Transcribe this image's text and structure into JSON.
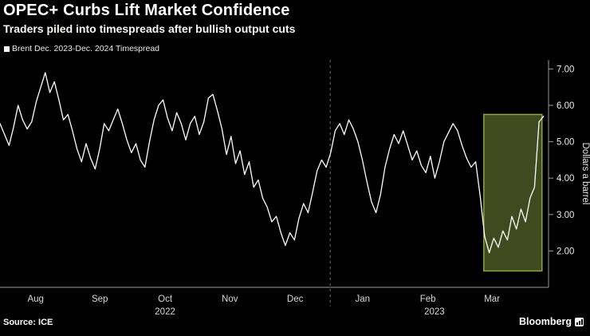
{
  "header": {
    "title": "OPEC+ Curbs Lift Market Confidence",
    "subtitle": "Traders piled into timespreads after bullish output cuts",
    "legend": "Brent Dec. 2023-Dec. 2024 Timespread"
  },
  "footer": {
    "source": "Source: ICE",
    "brand": "Bloomberg"
  },
  "chart_data": {
    "type": "line",
    "title": "OPEC+ Curbs Lift Market Confidence",
    "subtitle": "Traders piled into timespreads after bullish output cuts",
    "ylabel": "Dollars a barrel",
    "ylim": [
      1.0,
      7.25
    ],
    "grid": "off",
    "legend_position": "top-left",
    "yticks": [
      {
        "value": 2,
        "label": "2.00"
      },
      {
        "value": 3,
        "label": "3.00"
      },
      {
        "value": 4,
        "label": "4.00"
      },
      {
        "value": 5,
        "label": "5.00"
      },
      {
        "value": 6,
        "label": "6.00"
      },
      {
        "value": 7,
        "label": "7.00"
      }
    ],
    "x_labels": [
      {
        "label": "Aug",
        "pos": 0.065
      },
      {
        "label": "Sep",
        "pos": 0.182
      },
      {
        "label": "Oct",
        "pos": 0.301
      },
      {
        "label": "Nov",
        "pos": 0.419
      },
      {
        "label": "Dec",
        "pos": 0.538
      },
      {
        "label": "Jan",
        "pos": 0.661
      },
      {
        "label": "Feb",
        "pos": 0.78
      },
      {
        "label": "Mar",
        "pos": 0.897
      }
    ],
    "year_labels": [
      {
        "label": "2022",
        "pos": 0.301
      },
      {
        "label": "2023",
        "pos": 0.792
      }
    ],
    "year_divider_pos": 0.602,
    "x_span": 0.991,
    "highlight": {
      "x0": 0.882,
      "x1": 0.988,
      "y0": 1.45,
      "y1": 5.75
    },
    "colors": {
      "line": "#ffffff",
      "axis": "#9a9a9a",
      "tick_text": "#e8e8e8",
      "divider": "#707070",
      "highlight_fill": "#3f4a1e",
      "highlight_border": "#8aa743",
      "background": "#000000"
    },
    "series": [
      {
        "name": "Brent Dec. 2023-Dec. 2024 Timespread",
        "values": [
          5.5,
          5.2,
          4.9,
          5.4,
          6.0,
          5.6,
          5.35,
          5.55,
          6.1,
          6.5,
          6.9,
          6.35,
          6.65,
          6.15,
          5.6,
          5.75,
          5.3,
          4.8,
          4.45,
          4.95,
          4.55,
          4.25,
          4.8,
          5.5,
          5.3,
          5.6,
          5.9,
          5.5,
          5.05,
          4.7,
          4.95,
          4.5,
          4.3,
          5.0,
          5.6,
          6.0,
          6.15,
          5.65,
          5.3,
          5.8,
          5.5,
          5.05,
          5.5,
          5.7,
          5.2,
          5.55,
          6.2,
          6.3,
          5.85,
          5.35,
          4.65,
          5.15,
          4.4,
          4.75,
          4.1,
          4.45,
          3.75,
          3.95,
          3.45,
          3.2,
          2.8,
          2.95,
          2.5,
          2.15,
          2.5,
          2.3,
          2.9,
          3.3,
          3.05,
          3.6,
          4.2,
          4.5,
          4.3,
          4.7,
          5.3,
          5.5,
          5.2,
          5.6,
          5.35,
          5.0,
          4.5,
          3.9,
          3.35,
          3.05,
          3.55,
          4.3,
          4.8,
          5.2,
          4.95,
          5.3,
          4.9,
          4.5,
          4.75,
          4.35,
          4.15,
          4.6,
          4.0,
          4.45,
          5.0,
          5.25,
          5.5,
          5.3,
          4.9,
          4.55,
          4.3,
          4.45,
          3.5,
          2.4,
          1.95,
          2.35,
          2.1,
          2.55,
          2.3,
          2.95,
          2.6,
          3.15,
          2.8,
          3.45,
          3.75,
          5.55,
          5.7
        ]
      }
    ]
  }
}
